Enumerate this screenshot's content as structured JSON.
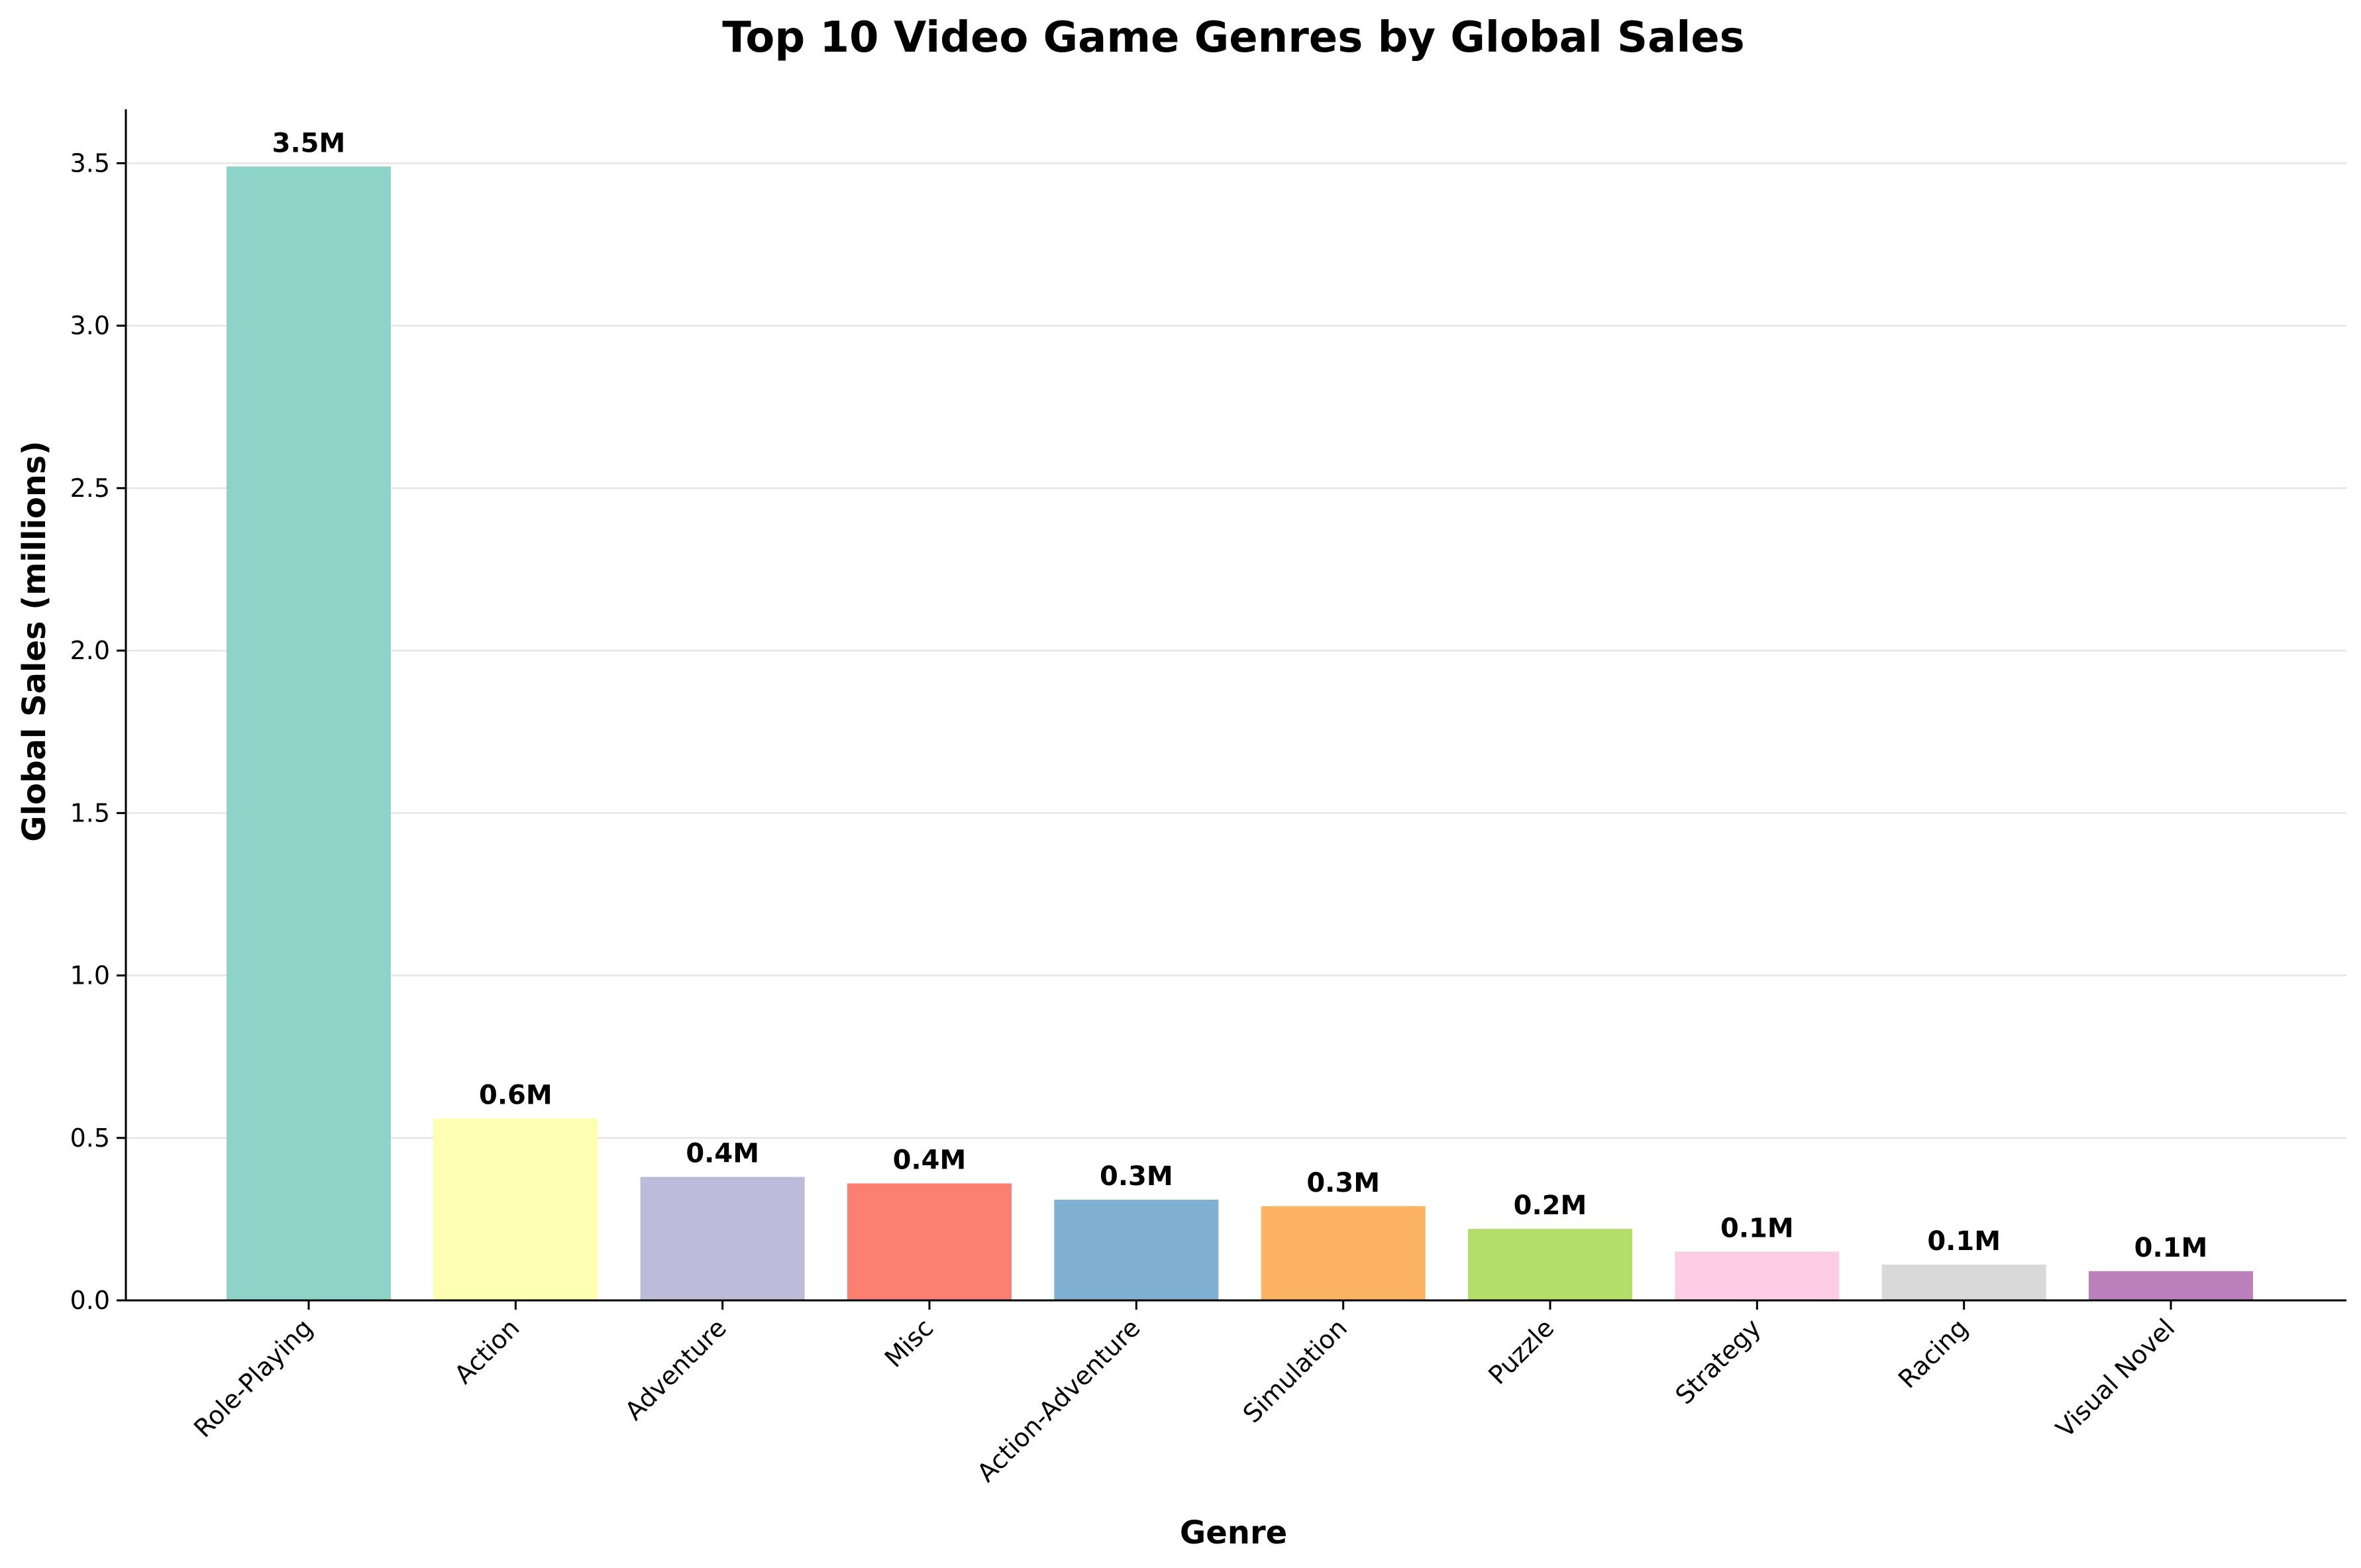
{
  "chart_data": {
    "type": "bar",
    "title": "Top 10 Video Game Genres by Global Sales",
    "xlabel": "Genre",
    "ylabel": "Global Sales (millions)",
    "categories": [
      "Role-Playing",
      "Action",
      "Adventure",
      "Misc",
      "Action-Adventure",
      "Simulation",
      "Puzzle",
      "Strategy",
      "Racing",
      "Visual Novel"
    ],
    "values": [
      3.49,
      0.56,
      0.38,
      0.36,
      0.31,
      0.29,
      0.22,
      0.15,
      0.11,
      0.09
    ],
    "data_labels": [
      "3.5M",
      "0.6M",
      "0.4M",
      "0.4M",
      "0.3M",
      "0.3M",
      "0.2M",
      "0.1M",
      "0.1M",
      "0.1M"
    ],
    "colors": [
      "#8dd3c7",
      "#ffffb3",
      "#bebada",
      "#fb8072",
      "#80b1d3",
      "#fdb462",
      "#b3de69",
      "#fccde5",
      "#d9d9d9",
      "#bc80bd"
    ],
    "ylim": [
      0,
      3.666
    ],
    "yticks": [
      0.0,
      0.5,
      1.0,
      1.5,
      2.0,
      2.5,
      3.0,
      3.5
    ],
    "ytick_labels": [
      "0.0",
      "0.5",
      "1.0",
      "1.5",
      "2.0",
      "2.5",
      "3.0",
      "3.5"
    ],
    "grid": "y-axis only",
    "legend": "none"
  }
}
